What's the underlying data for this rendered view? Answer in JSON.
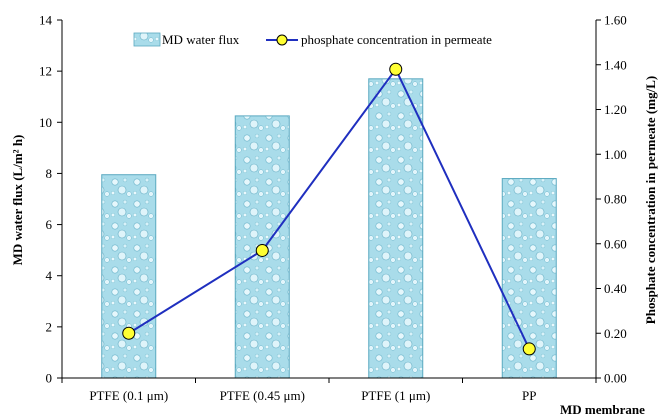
{
  "chart_data": {
    "type": "bar",
    "categories": [
      "PTFE (0.1 μm)",
      "PTFE (0.45 μm)",
      "PTFE (1 μm)",
      "PP"
    ],
    "series": [
      {
        "name": "MD water flux",
        "type": "bar",
        "axis": "left",
        "values": [
          7.95,
          10.25,
          11.7,
          7.8
        ],
        "color": "#a9dcea"
      },
      {
        "name": "phosphate concentration in permeate",
        "type": "line",
        "axis": "right",
        "values": [
          0.2,
          0.57,
          1.38,
          0.13
        ],
        "color": "#1f2fbf",
        "marker_color": "#ffff33"
      }
    ],
    "xlabel": "MD membrane",
    "ylabel_left": "MD water flux (L/m² h)",
    "ylabel_right": "Phosphate concentration in permeate (mg/L)",
    "ylim_left": [
      0,
      14
    ],
    "yticks_left": [
      "0",
      "2",
      "4",
      "6",
      "8",
      "10",
      "12",
      "14"
    ],
    "ylim_right": [
      0,
      1.6
    ],
    "yticks_right": [
      "0.00",
      "0.20",
      "0.40",
      "0.60",
      "0.80",
      "1.00",
      "1.20",
      "1.40",
      "1.60"
    ],
    "legend_position": "top-center",
    "grid": false
  }
}
